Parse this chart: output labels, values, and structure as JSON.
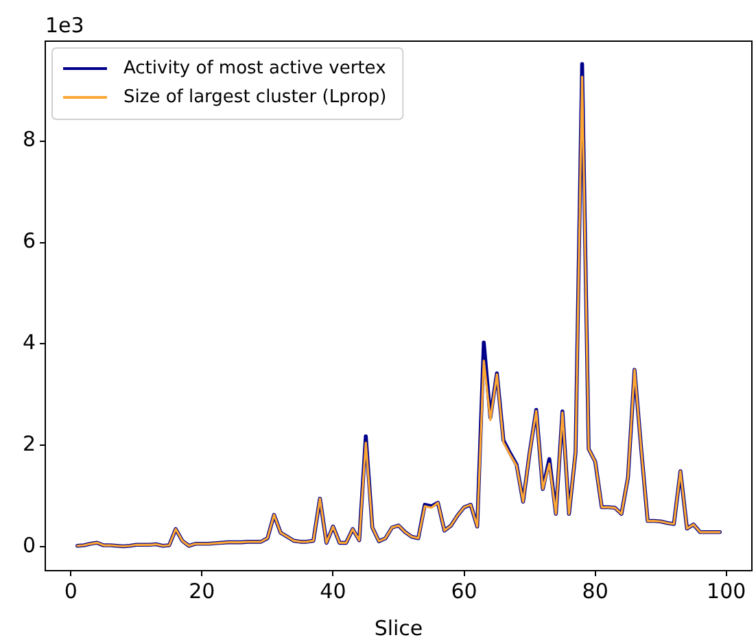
{
  "chart_data": {
    "type": "line",
    "xlabel": "Slice",
    "annotations": [
      "1e3"
    ],
    "x": [
      1,
      2,
      3,
      4,
      5,
      6,
      7,
      8,
      9,
      10,
      11,
      12,
      13,
      14,
      15,
      16,
      17,
      18,
      19,
      20,
      21,
      22,
      23,
      24,
      25,
      26,
      27,
      28,
      29,
      30,
      31,
      32,
      33,
      34,
      35,
      36,
      37,
      38,
      39,
      40,
      41,
      42,
      43,
      44,
      45,
      46,
      47,
      48,
      49,
      50,
      51,
      52,
      53,
      54,
      55,
      56,
      57,
      58,
      59,
      60,
      61,
      62,
      63,
      64,
      65,
      66,
      67,
      68,
      69,
      70,
      71,
      72,
      73,
      74,
      75,
      76,
      77,
      78,
      79,
      80,
      81,
      82,
      83,
      84,
      85,
      86,
      87,
      88,
      89,
      90,
      91,
      92,
      93,
      94,
      95,
      96,
      97,
      98,
      99
    ],
    "series": [
      {
        "name": "Activity of most active vertex",
        "color": "#00008b",
        "values": [
          0.02,
          0.03,
          0.06,
          0.08,
          0.03,
          0.03,
          0.02,
          0.01,
          0.02,
          0.04,
          0.04,
          0.04,
          0.05,
          0.02,
          0.03,
          0.35,
          0.12,
          0.02,
          0.06,
          0.06,
          0.06,
          0.07,
          0.08,
          0.09,
          0.09,
          0.09,
          0.1,
          0.1,
          0.1,
          0.17,
          0.63,
          0.28,
          0.2,
          0.12,
          0.1,
          0.1,
          0.12,
          0.95,
          0.08,
          0.4,
          0.08,
          0.08,
          0.35,
          0.13,
          2.18,
          0.38,
          0.11,
          0.17,
          0.38,
          0.42,
          0.29,
          0.2,
          0.17,
          0.83,
          0.8,
          0.87,
          0.32,
          0.42,
          0.62,
          0.78,
          0.83,
          0.4,
          4.03,
          2.55,
          3.42,
          2.1,
          1.85,
          1.62,
          0.89,
          1.86,
          2.7,
          1.14,
          1.73,
          0.65,
          2.67,
          0.65,
          1.86,
          9.52,
          1.93,
          1.68,
          0.78,
          0.78,
          0.77,
          0.65,
          1.37,
          3.49,
          1.95,
          0.51,
          0.51,
          0.5,
          0.47,
          0.45,
          1.49,
          0.36,
          0.44,
          0.29,
          0.29,
          0.29,
          0.29
        ]
      },
      {
        "name": "Size of largest cluster (Lprop)",
        "color": "#ffa833",
        "values": [
          0.02,
          0.03,
          0.06,
          0.08,
          0.03,
          0.03,
          0.02,
          0.01,
          0.02,
          0.04,
          0.04,
          0.04,
          0.05,
          0.02,
          0.03,
          0.35,
          0.12,
          0.02,
          0.06,
          0.06,
          0.06,
          0.07,
          0.08,
          0.09,
          0.09,
          0.09,
          0.1,
          0.1,
          0.1,
          0.17,
          0.63,
          0.28,
          0.2,
          0.12,
          0.1,
          0.1,
          0.12,
          0.95,
          0.08,
          0.4,
          0.08,
          0.08,
          0.35,
          0.13,
          2.05,
          0.38,
          0.11,
          0.17,
          0.38,
          0.42,
          0.29,
          0.2,
          0.17,
          0.8,
          0.77,
          0.87,
          0.32,
          0.42,
          0.62,
          0.78,
          0.83,
          0.4,
          3.67,
          2.5,
          3.4,
          2.06,
          1.82,
          1.6,
          0.89,
          1.86,
          2.68,
          1.14,
          1.64,
          0.65,
          2.65,
          0.65,
          1.86,
          9.27,
          1.93,
          1.68,
          0.78,
          0.78,
          0.77,
          0.65,
          1.37,
          3.49,
          1.95,
          0.51,
          0.51,
          0.5,
          0.47,
          0.45,
          1.49,
          0.36,
          0.44,
          0.29,
          0.29,
          0.29,
          0.29
        ]
      }
    ],
    "xlim": [
      -3.9,
      103.9
    ],
    "xticks": [
      0,
      20,
      40,
      60,
      80,
      100
    ],
    "ylim": [
      -0.47,
      9.97
    ],
    "yticks": [
      0,
      2,
      4,
      6,
      8
    ],
    "legend": "top left",
    "marker": "none",
    "line_style": "solid"
  }
}
